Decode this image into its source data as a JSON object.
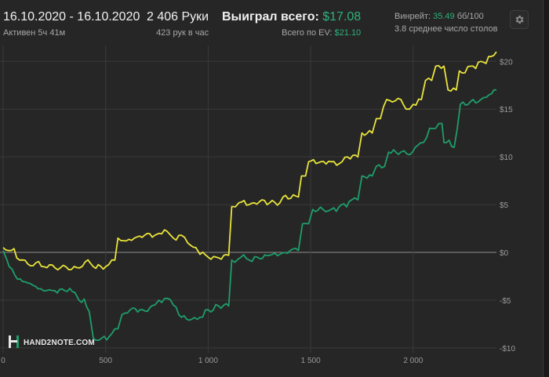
{
  "header": {
    "date_range": "16.10.2020 - 16.10.2020",
    "active": "Активен 5ч 41м",
    "hands": "2 406 Руки",
    "hands_per_hour": "423 рук в час",
    "won_label": "Выиграл всего:",
    "won_value": "$17.08",
    "ev_label": "Всего по EV:",
    "ev_value": "$21.10",
    "winrate_label": "Винрейт:",
    "winrate_value": "35.49",
    "winrate_unit": "бб/100",
    "tables": "3.8 среднее число столов"
  },
  "icons": {
    "settings": "gear-icon"
  },
  "watermark": {
    "text": "HAND2NOTE.COM",
    "icon": "hand2note-logo-icon"
  },
  "colors": {
    "background": "#262626",
    "grid": "#3a3a3a",
    "zero_line": "#8e8e8e",
    "ev_series": "#e9e43a",
    "won_series": "#1f9e6b",
    "accent_green": "#2fb07a"
  },
  "chart_data": {
    "type": "line",
    "title": "",
    "xlabel": "",
    "ylabel": "",
    "xlim": [
      0,
      2406
    ],
    "ylim": [
      -10.5,
      21.5
    ],
    "x_ticks": [
      0,
      500,
      1000,
      1500,
      2000
    ],
    "x_tick_labels": [
      "0",
      "500",
      "1 000",
      "1 500",
      "2 000"
    ],
    "y_ticks": [
      20,
      15,
      10,
      5,
      0,
      -5,
      -10
    ],
    "y_tick_labels": [
      "$20",
      "$15",
      "$10",
      "$5",
      "$0",
      "-$5",
      "-$10"
    ],
    "grid": true,
    "legend": "none",
    "series": [
      {
        "color": "#e9e43a",
        "points": [
          [
            0,
            0.5
          ],
          [
            40,
            0.2
          ],
          [
            80,
            -0.8
          ],
          [
            120,
            -1.2
          ],
          [
            200,
            -1.5
          ],
          [
            280,
            -1.6
          ],
          [
            360,
            -1.6
          ],
          [
            400,
            -1.0
          ],
          [
            440,
            -1.5
          ],
          [
            500,
            -1.5
          ],
          [
            545,
            -0.8
          ],
          [
            560,
            1.5
          ],
          [
            600,
            1.2
          ],
          [
            640,
            1.5
          ],
          [
            690,
            1.8
          ],
          [
            740,
            1.8
          ],
          [
            760,
            2.0
          ],
          [
            800,
            2.2
          ],
          [
            830,
            1.5
          ],
          [
            870,
            1.8
          ],
          [
            900,
            1.0
          ],
          [
            940,
            0.5
          ],
          [
            960,
            -0.2
          ],
          [
            1000,
            -0.5
          ],
          [
            1040,
            -0.5
          ],
          [
            1100,
            -0.3
          ],
          [
            1115,
            4.8
          ],
          [
            1150,
            5.2
          ],
          [
            1200,
            5.0
          ],
          [
            1250,
            5.3
          ],
          [
            1300,
            5.2
          ],
          [
            1350,
            5.2
          ],
          [
            1365,
            5.8
          ],
          [
            1440,
            5.8
          ],
          [
            1455,
            8.0
          ],
          [
            1475,
            8.0
          ],
          [
            1490,
            9.5
          ],
          [
            1550,
            9.5
          ],
          [
            1600,
            9.5
          ],
          [
            1640,
            9.3
          ],
          [
            1680,
            10.0
          ],
          [
            1730,
            10.0
          ],
          [
            1750,
            12.5
          ],
          [
            1800,
            12.5
          ],
          [
            1820,
            14.0
          ],
          [
            1840,
            14.0
          ],
          [
            1870,
            16.0
          ],
          [
            1940,
            16.0
          ],
          [
            1965,
            15.0
          ],
          [
            2000,
            15.5
          ],
          [
            2040,
            16.0
          ],
          [
            2060,
            18.0
          ],
          [
            2090,
            18.0
          ],
          [
            2110,
            19.5
          ],
          [
            2150,
            19.5
          ],
          [
            2170,
            17.0
          ],
          [
            2210,
            17.0
          ],
          [
            2225,
            19.0
          ],
          [
            2280,
            19.5
          ],
          [
            2330,
            20.0
          ],
          [
            2380,
            20.5
          ],
          [
            2406,
            21.0
          ]
        ]
      },
      {
        "color": "#1f9e6b",
        "points": [
          [
            0,
            0.2
          ],
          [
            30,
            -1.5
          ],
          [
            70,
            -2.8
          ],
          [
            120,
            -3.2
          ],
          [
            170,
            -3.8
          ],
          [
            240,
            -4.0
          ],
          [
            300,
            -4.0
          ],
          [
            350,
            -4.2
          ],
          [
            370,
            -5.0
          ],
          [
            420,
            -6.2
          ],
          [
            440,
            -9.0
          ],
          [
            480,
            -9.0
          ],
          [
            530,
            -8.5
          ],
          [
            560,
            -8.0
          ],
          [
            580,
            -6.5
          ],
          [
            620,
            -6.0
          ],
          [
            680,
            -6.0
          ],
          [
            740,
            -5.5
          ],
          [
            760,
            -5.0
          ],
          [
            800,
            -4.8
          ],
          [
            830,
            -5.5
          ],
          [
            870,
            -6.8
          ],
          [
            920,
            -7.0
          ],
          [
            960,
            -6.8
          ],
          [
            1000,
            -6.0
          ],
          [
            1050,
            -5.6
          ],
          [
            1100,
            -5.6
          ],
          [
            1115,
            -0.8
          ],
          [
            1160,
            -0.5
          ],
          [
            1200,
            -0.8
          ],
          [
            1240,
            -0.5
          ],
          [
            1300,
            -0.3
          ],
          [
            1350,
            -0.2
          ],
          [
            1400,
            0.2
          ],
          [
            1440,
            0.2
          ],
          [
            1460,
            3.0
          ],
          [
            1490,
            3.0
          ],
          [
            1510,
            4.5
          ],
          [
            1560,
            4.5
          ],
          [
            1600,
            4.5
          ],
          [
            1650,
            5.0
          ],
          [
            1700,
            5.5
          ],
          [
            1730,
            5.5
          ],
          [
            1750,
            8.0
          ],
          [
            1800,
            8.0
          ],
          [
            1820,
            9.0
          ],
          [
            1860,
            9.0
          ],
          [
            1880,
            10.5
          ],
          [
            1940,
            10.5
          ],
          [
            1970,
            10.3
          ],
          [
            2010,
            11.0
          ],
          [
            2050,
            11.5
          ],
          [
            2080,
            13.0
          ],
          [
            2110,
            13.0
          ],
          [
            2140,
            13.5
          ],
          [
            2150,
            11.5
          ],
          [
            2200,
            11.0
          ],
          [
            2215,
            13.0
          ],
          [
            2230,
            15.5
          ],
          [
            2280,
            15.8
          ],
          [
            2330,
            16.0
          ],
          [
            2370,
            16.5
          ],
          [
            2406,
            17.0
          ]
        ]
      }
    ]
  }
}
